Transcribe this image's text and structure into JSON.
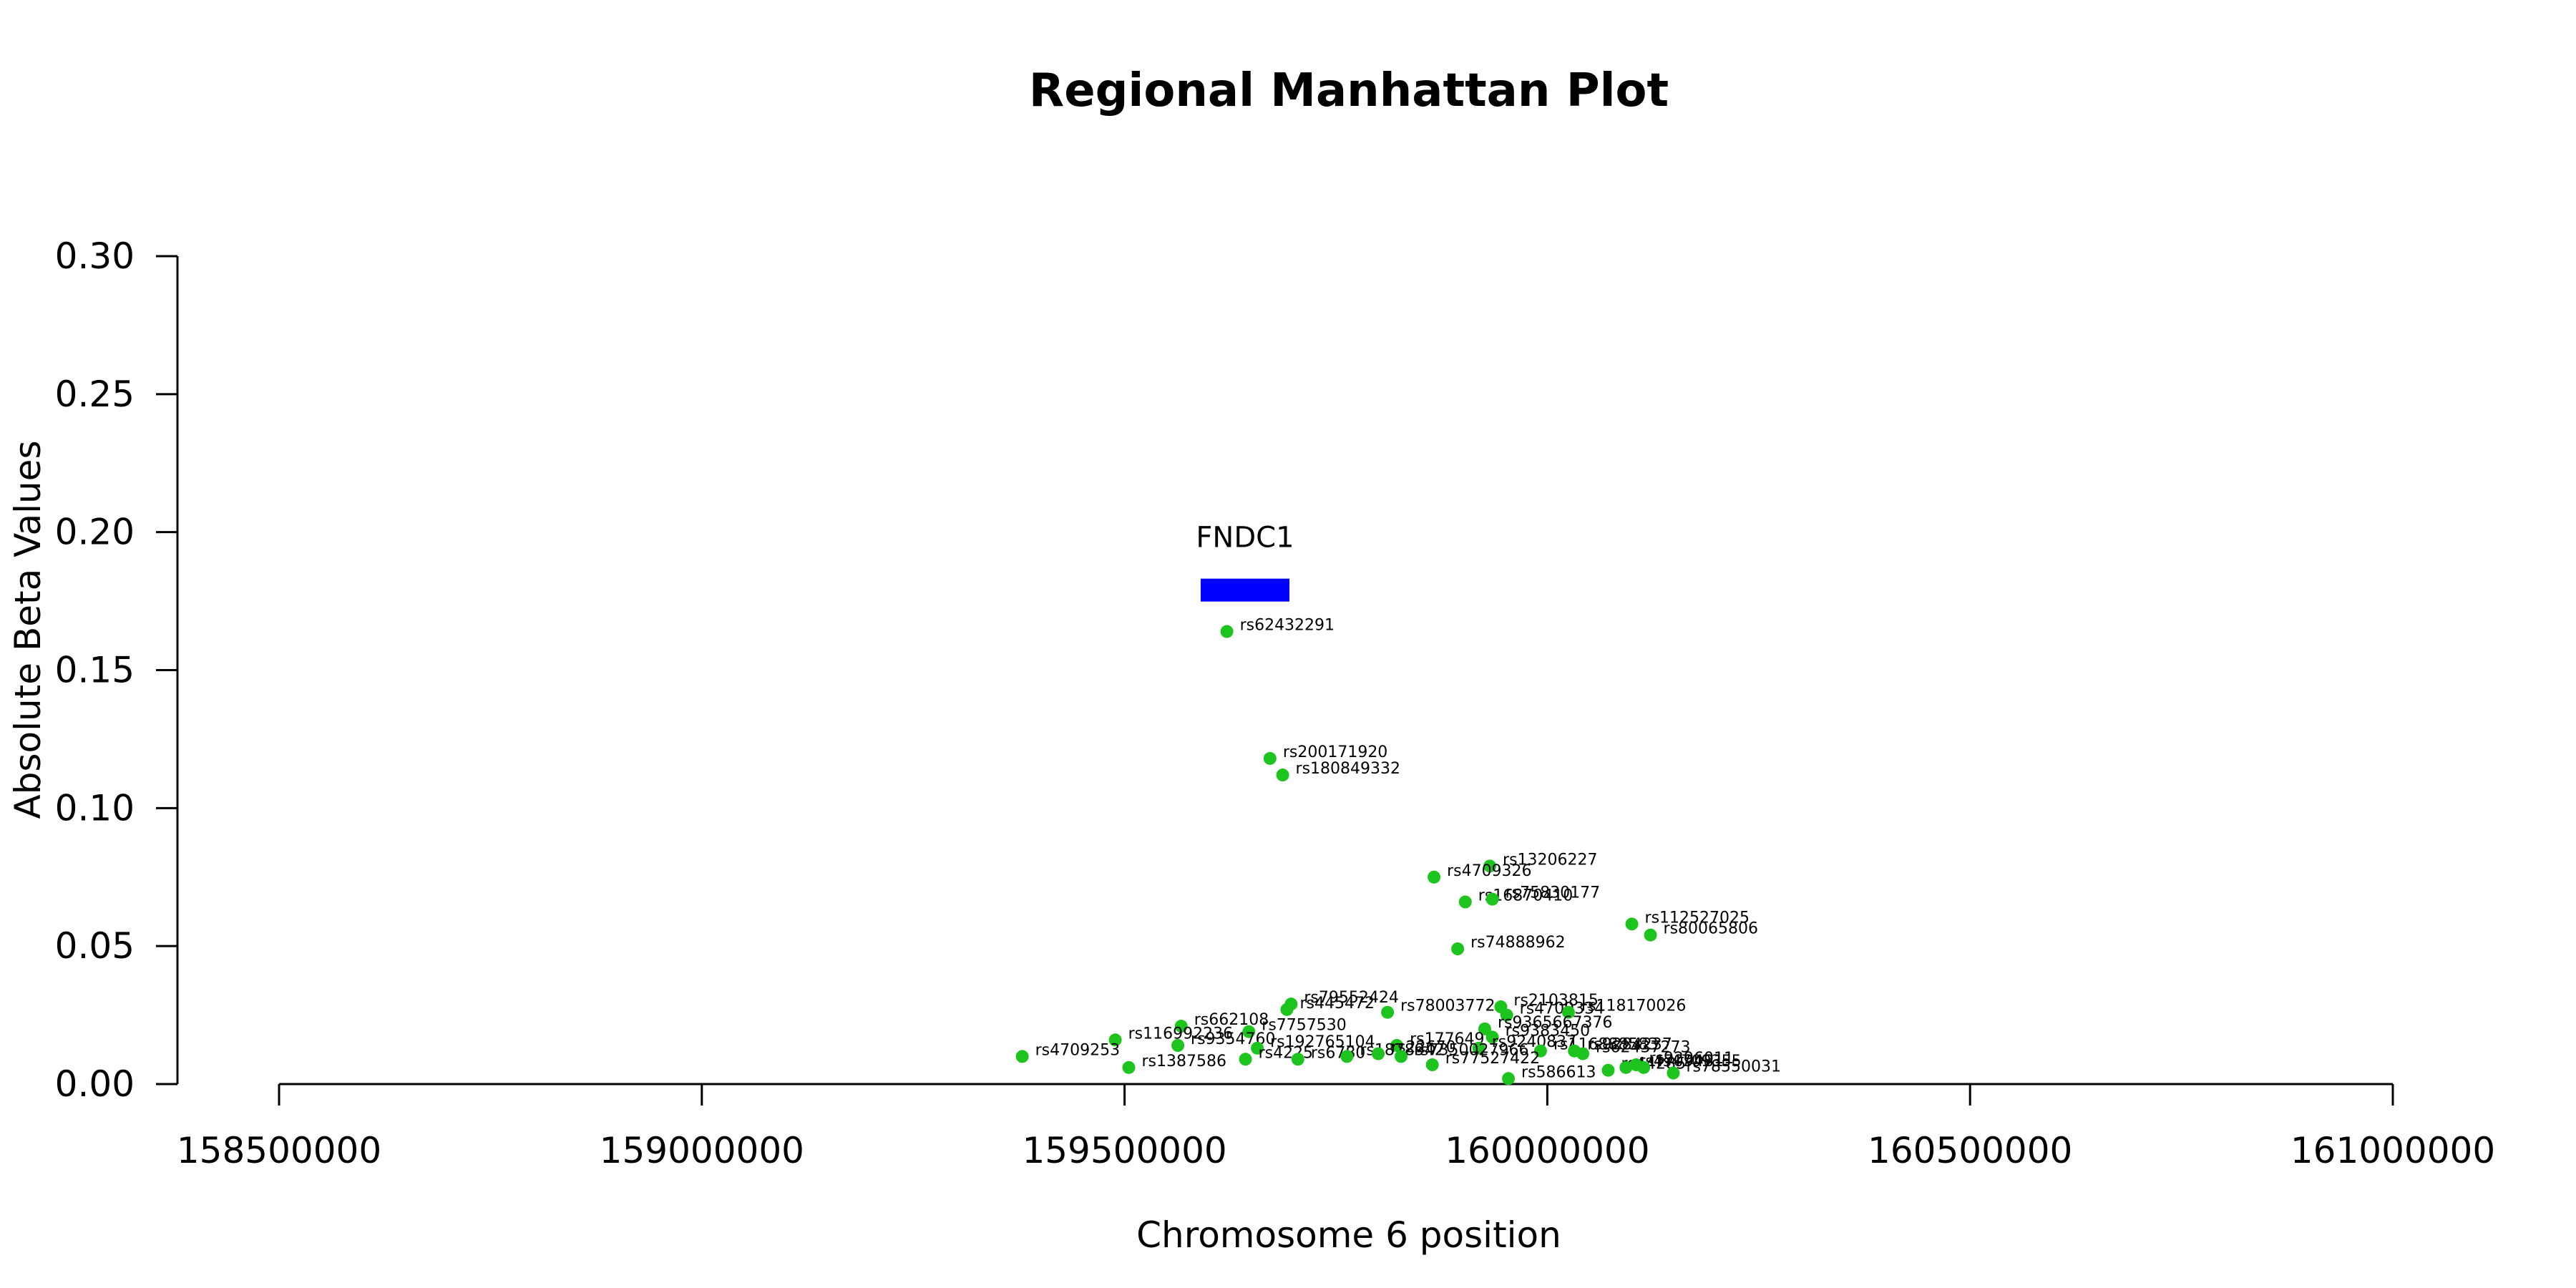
{
  "chart_data": {
    "type": "scatter",
    "title": "Regional Manhattan Plot",
    "xlabel": "Chromosome 6 position",
    "ylabel": "Absolute Beta Values",
    "xlim": [
      158500000,
      161000000
    ],
    "ylim": [
      0,
      0.3
    ],
    "x_ticks": [
      "158500000",
      "159000000",
      "159500000",
      "160000000",
      "160500000",
      "161000000"
    ],
    "y_ticks": [
      "0.00",
      "0.05",
      "0.10",
      "0.15",
      "0.20",
      "0.25",
      "0.30"
    ],
    "grid": false,
    "point_color": "#1ec41e",
    "gene_color": "#0000ff",
    "genes": [
      {
        "name": "FNDC1",
        "start": 159590000,
        "end": 159695000,
        "y": 0.179
      }
    ],
    "points": [
      {
        "label": "rs62432291",
        "x": 159621000,
        "y": 0.164
      },
      {
        "label": "rs200171920",
        "x": 159672000,
        "y": 0.118
      },
      {
        "label": "rs180849332",
        "x": 159687000,
        "y": 0.112
      },
      {
        "label": "rs13206227",
        "x": 159932000,
        "y": 0.079
      },
      {
        "label": "rs4709326",
        "x": 159866000,
        "y": 0.075
      },
      {
        "label": "rs16870410",
        "x": 159903000,
        "y": 0.066
      },
      {
        "label": "rs75830177",
        "x": 159935000,
        "y": 0.067
      },
      {
        "label": "rs112527025",
        "x": 160100000,
        "y": 0.058
      },
      {
        "label": "rs80065806",
        "x": 160122000,
        "y": 0.054
      },
      {
        "label": "rs74888962",
        "x": 159894000,
        "y": 0.049
      },
      {
        "label": "rs79552424",
        "x": 159697000,
        "y": 0.029
      },
      {
        "label": "rs445472",
        "x": 159692000,
        "y": 0.027
      },
      {
        "label": "rs78003772",
        "x": 159811000,
        "y": 0.026
      },
      {
        "label": "rs2103815",
        "x": 159945000,
        "y": 0.028
      },
      {
        "label": "rs4709334",
        "x": 159952000,
        "y": 0.025
      },
      {
        "label": "rs118170026",
        "x": 160025000,
        "y": 0.026
      },
      {
        "label": "rs662108",
        "x": 159567000,
        "y": 0.021
      },
      {
        "label": "rs7757530",
        "x": 159647000,
        "y": 0.019
      },
      {
        "label": "rs9365667376",
        "x": 159926000,
        "y": 0.02
      },
      {
        "label": "rs9383450",
        "x": 159935000,
        "y": 0.017
      },
      {
        "label": "rs116992236",
        "x": 159489000,
        "y": 0.016
      },
      {
        "label": "rs9354760",
        "x": 159563000,
        "y": 0.014
      },
      {
        "label": "rs192765104",
        "x": 159657000,
        "y": 0.013
      },
      {
        "label": "rs177649",
        "x": 159822000,
        "y": 0.014
      },
      {
        "label": "rs9240837",
        "x": 159919000,
        "y": 0.013
      },
      {
        "label": "rs116888583",
        "x": 159992000,
        "y": 0.012
      },
      {
        "label": "rs9284237",
        "x": 160032000,
        "y": 0.012
      },
      {
        "label": "rs62437273",
        "x": 160042000,
        "y": 0.011
      },
      {
        "label": "rs4709253",
        "x": 159379000,
        "y": 0.01
      },
      {
        "label": "rs4225",
        "x": 159643000,
        "y": 0.009
      },
      {
        "label": "rs6780",
        "x": 159705000,
        "y": 0.009
      },
      {
        "label": "rs1878942",
        "x": 159763000,
        "y": 0.01
      },
      {
        "label": "rs22670",
        "x": 159800000,
        "y": 0.011
      },
      {
        "label": "rs7350027966",
        "x": 159827000,
        "y": 0.01
      },
      {
        "label": "rs77527422",
        "x": 159864000,
        "y": 0.007
      },
      {
        "label": "rs1387586",
        "x": 159505000,
        "y": 0.006
      },
      {
        "label": "rs44285",
        "x": 160072000,
        "y": 0.005
      },
      {
        "label": "rs4709481",
        "x": 160093000,
        "y": 0.006
      },
      {
        "label": "rs9296011",
        "x": 160105000,
        "y": 0.007
      },
      {
        "label": "rs4709355",
        "x": 160114000,
        "y": 0.006
      },
      {
        "label": "rs78550031",
        "x": 160149000,
        "y": 0.004
      },
      {
        "label": "rs586613",
        "x": 159954000,
        "y": 0.002
      }
    ]
  }
}
